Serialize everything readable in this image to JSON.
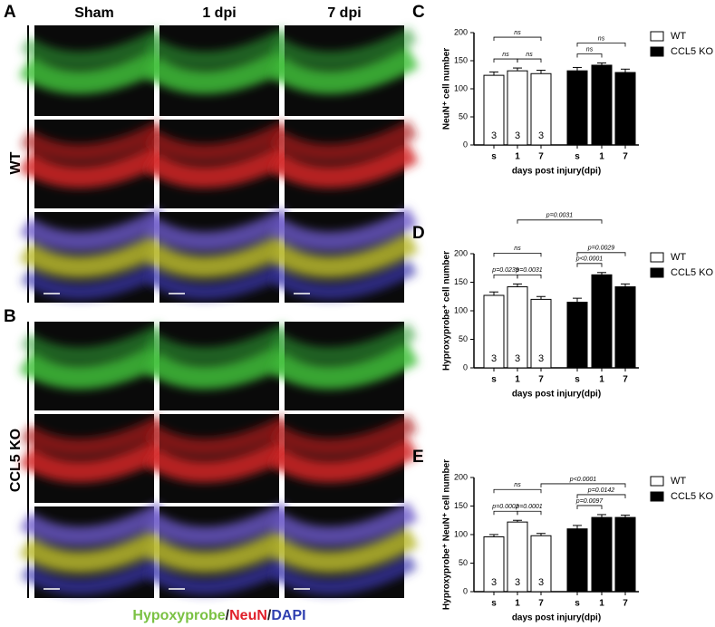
{
  "figure": {
    "panels": [
      "A",
      "B"
    ],
    "columns": [
      "Sham",
      "1 dpi",
      "7 dpi"
    ],
    "rows": [
      "WT",
      "CCL5 KO"
    ],
    "stain_legend": [
      {
        "text": "Hypoxyprobe",
        "color": "#7ac143"
      },
      {
        "text": "/",
        "color": "#222222"
      },
      {
        "text": "NeuN",
        "color": "#e0202a"
      },
      {
        "text": "/",
        "color": "#222222"
      },
      {
        "text": "DAPI",
        "color": "#3040b0"
      }
    ]
  },
  "chart_data": [
    {
      "type": "bar",
      "panel": "C",
      "y_label": "NeuN⁺ cell number",
      "x_label": "days post injury(dpi)",
      "categories": [
        "s",
        "1",
        "7"
      ],
      "ylim": [
        0,
        200
      ],
      "yticks": [
        0,
        50,
        100,
        150,
        200
      ],
      "legend": "outside-right",
      "series": [
        {
          "name": "WT",
          "color": "#ffffff",
          "values": [
            124,
            132,
            127
          ],
          "errors": [
            6,
            5,
            6
          ],
          "n": [
            3,
            3,
            3
          ]
        },
        {
          "name": "CCL5 KO",
          "color": "#000000",
          "values": [
            132,
            142,
            129
          ],
          "errors": [
            6,
            4,
            6
          ],
          "n": [
            3,
            3,
            3
          ]
        }
      ],
      "annotations": [
        {
          "label": "ns",
          "from": [
            0,
            0
          ],
          "to": [
            0,
            1
          ]
        },
        {
          "label": "ns",
          "from": [
            0,
            1
          ],
          "to": [
            0,
            2
          ]
        },
        {
          "label": "ns",
          "from": [
            0,
            0
          ],
          "to": [
            0,
            2
          ]
        },
        {
          "label": "ns",
          "from": [
            1,
            0
          ],
          "to": [
            1,
            1
          ]
        },
        {
          "label": "ns",
          "from": [
            1,
            0
          ],
          "to": [
            1,
            2
          ]
        }
      ]
    },
    {
      "type": "bar",
      "panel": "D",
      "y_label": "Hyproxyprobe⁺ cell number",
      "x_label": "days post injury(dpi)",
      "categories": [
        "s",
        "1",
        "7"
      ],
      "ylim": [
        0,
        200
      ],
      "yticks": [
        0,
        50,
        100,
        150,
        200
      ],
      "legend": "outside-right",
      "series": [
        {
          "name": "WT",
          "color": "#ffffff",
          "values": [
            127,
            142,
            120
          ],
          "errors": [
            6,
            5,
            5
          ],
          "n": [
            3,
            3,
            3
          ]
        },
        {
          "name": "CCL5 KO",
          "color": "#000000",
          "values": [
            115,
            163,
            142
          ],
          "errors": [
            7,
            4,
            5
          ],
          "n": [
            3,
            3,
            3
          ]
        }
      ],
      "annotations": [
        {
          "label": "p=0.0239",
          "from": [
            0,
            0
          ],
          "to": [
            0,
            1
          ]
        },
        {
          "label": "p=0.0031",
          "from": [
            0,
            1
          ],
          "to": [
            0,
            2
          ]
        },
        {
          "label": "ns",
          "from": [
            0,
            0
          ],
          "to": [
            0,
            2
          ]
        },
        {
          "label": "p<0.0001",
          "from": [
            1,
            0
          ],
          "to": [
            1,
            1
          ]
        },
        {
          "label": "p=0.0029",
          "from": [
            1,
            0
          ],
          "to": [
            1,
            2
          ]
        },
        {
          "label": "p=0.0031",
          "from": [
            0,
            1
          ],
          "to": [
            1,
            1
          ]
        }
      ]
    },
    {
      "type": "bar",
      "panel": "E",
      "y_label": "Hyproxyprobe⁺ NeuN⁺ cell number",
      "x_label": "days post injury(dpi)",
      "categories": [
        "s",
        "1",
        "7"
      ],
      "ylim": [
        0,
        200
      ],
      "yticks": [
        0,
        50,
        100,
        150,
        200
      ],
      "legend": "outside-right",
      "series": [
        {
          "name": "WT",
          "color": "#ffffff",
          "values": [
            96,
            122,
            98
          ],
          "errors": [
            4,
            3,
            4
          ],
          "n": [
            3,
            3,
            3
          ]
        },
        {
          "name": "CCL5 KO",
          "color": "#000000",
          "values": [
            110,
            130,
            130
          ],
          "errors": [
            6,
            5,
            4
          ],
          "n": [
            3,
            3,
            3
          ]
        }
      ],
      "annotations": [
        {
          "label": "p=0.0002",
          "from": [
            0,
            0
          ],
          "to": [
            0,
            1
          ]
        },
        {
          "label": "p=0.0001",
          "from": [
            0,
            1
          ],
          "to": [
            0,
            2
          ]
        },
        {
          "label": "ns",
          "from": [
            0,
            0
          ],
          "to": [
            0,
            2
          ]
        },
        {
          "label": "p=0.0097",
          "from": [
            1,
            0
          ],
          "to": [
            1,
            1
          ]
        },
        {
          "label": "p=0.0142",
          "from": [
            1,
            0
          ],
          "to": [
            1,
            2
          ]
        },
        {
          "label": "p<0.0001",
          "from": [
            0,
            2
          ],
          "to": [
            1,
            2
          ]
        }
      ]
    }
  ]
}
